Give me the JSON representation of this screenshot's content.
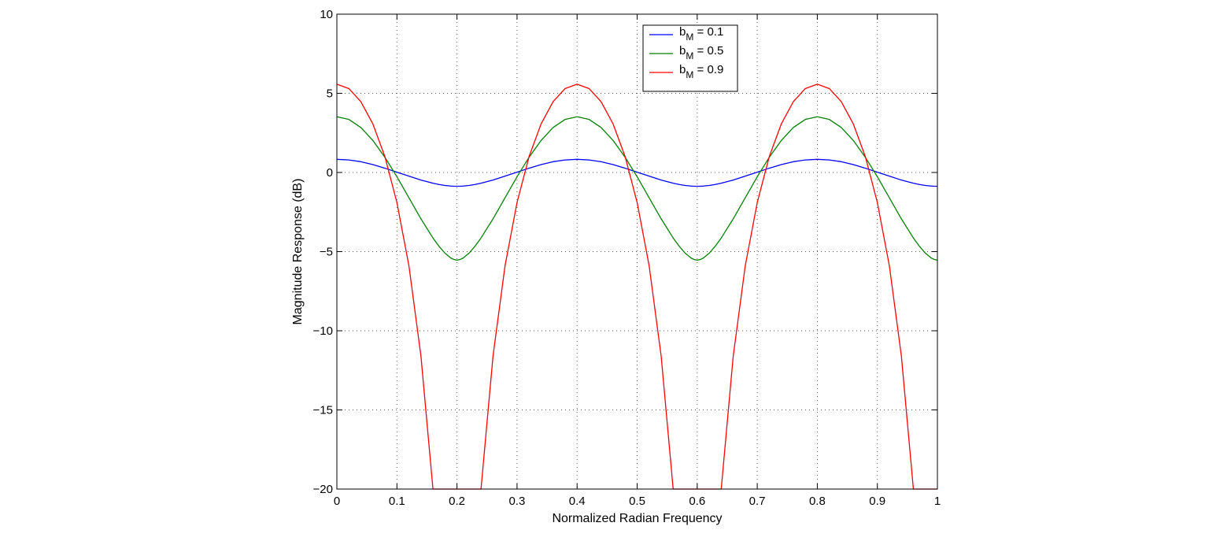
{
  "chart_data": {
    "type": "line",
    "title": "",
    "xlabel": "Normalized Radian Frequency",
    "ylabel": "Magnitude Response (dB)",
    "xlim": [
      0,
      1
    ],
    "ylim": [
      -20,
      10
    ],
    "x_ticks": [
      0,
      0.1,
      0.2,
      0.3,
      0.4,
      0.5,
      0.6,
      0.7,
      0.8,
      0.9,
      1
    ],
    "x_tick_labels": [
      "0",
      "0.1",
      "0.2",
      "0.3",
      "0.4",
      "0.5",
      "0.6",
      "0.7",
      "0.8",
      "0.9",
      "1"
    ],
    "y_ticks": [
      10,
      5,
      0,
      -5,
      -10,
      -15,
      -20
    ],
    "y_tick_labels": [
      "10",
      "5",
      "0",
      "−5",
      "−10",
      "−15",
      "−20"
    ],
    "grid": true,
    "legend_position": "top-center",
    "x": [
      0,
      0.02,
      0.04,
      0.06,
      0.08,
      0.1,
      0.12,
      0.14,
      0.16,
      0.17,
      0.18,
      0.19,
      0.195,
      0.2,
      0.205,
      0.21,
      0.22,
      0.23,
      0.24,
      0.26,
      0.28,
      0.3,
      0.32,
      0.34,
      0.36,
      0.38,
      0.4,
      0.42,
      0.44,
      0.46,
      0.48,
      0.5,
      0.52,
      0.54,
      0.56,
      0.57,
      0.58,
      0.59,
      0.595,
      0.6,
      0.605,
      0.61,
      0.62,
      0.63,
      0.64,
      0.66,
      0.68,
      0.7,
      0.72,
      0.74,
      0.76,
      0.78,
      0.8,
      0.82,
      0.84,
      0.86,
      0.88,
      0.9,
      0.92,
      0.94,
      0.96,
      0.97,
      0.98,
      0.99,
      0.995,
      1
    ],
    "series": [
      {
        "name": "b_M = 0.1",
        "name_base": "b",
        "name_sub": "M",
        "name_rest": " = 0.1",
        "color": "#0000ff",
        "values": [
          0.83,
          0.79,
          0.68,
          0.5,
          0.27,
          0.02,
          -0.23,
          -0.48,
          -0.68,
          -0.76,
          -0.82,
          -0.86,
          -0.87,
          -0.87,
          -0.87,
          -0.86,
          -0.82,
          -0.76,
          -0.68,
          -0.48,
          -0.23,
          0.02,
          0.27,
          0.5,
          0.68,
          0.79,
          0.83,
          0.79,
          0.68,
          0.5,
          0.27,
          0.02,
          -0.23,
          -0.48,
          -0.68,
          -0.76,
          -0.82,
          -0.86,
          -0.87,
          -0.87,
          -0.87,
          -0.86,
          -0.82,
          -0.76,
          -0.68,
          -0.48,
          -0.23,
          0.02,
          0.27,
          0.5,
          0.68,
          0.79,
          0.83,
          0.79,
          0.68,
          0.5,
          0.27,
          0.02,
          -0.23,
          -0.48,
          -0.68,
          -0.76,
          -0.82,
          -0.86,
          -0.87,
          -0.87
        ]
      },
      {
        "name": "b_M = 0.5",
        "name_base": "b",
        "name_sub": "M",
        "name_rest": " = 0.5",
        "color": "#008000",
        "values": [
          3.52,
          3.35,
          2.84,
          2.02,
          0.96,
          -0.27,
          -1.6,
          -2.93,
          -4.14,
          -4.66,
          -5.1,
          -5.41,
          -5.5,
          -5.54,
          -5.5,
          -5.41,
          -5.1,
          -4.66,
          -4.14,
          -2.93,
          -1.6,
          -0.27,
          0.96,
          2.02,
          2.84,
          3.35,
          3.52,
          3.35,
          2.84,
          2.02,
          0.96,
          -0.27,
          -1.6,
          -2.93,
          -4.14,
          -4.66,
          -5.1,
          -5.41,
          -5.5,
          -5.54,
          -5.5,
          -5.41,
          -5.1,
          -4.66,
          -4.14,
          -2.93,
          -1.6,
          -0.27,
          0.96,
          2.02,
          2.84,
          3.35,
          3.52,
          3.35,
          2.84,
          2.02,
          0.96,
          -0.27,
          -1.6,
          -2.93,
          -4.14,
          -4.66,
          -5.1,
          -5.41,
          -5.5,
          -5.54
        ]
      },
      {
        "name": "b_M = 0.9",
        "name_base": "b",
        "name_sub": "M",
        "name_rest": " = 0.9",
        "color": "#ff0000",
        "values": [
          5.58,
          5.3,
          4.47,
          3.06,
          1.0,
          -1.9,
          -5.9,
          -11.6,
          -20.0,
          -20.0,
          -20.0,
          -20.0,
          -20.0,
          -20.0,
          -20.0,
          -20.0,
          -20.0,
          -20.0,
          -20.0,
          -11.6,
          -5.9,
          -1.9,
          1.0,
          3.06,
          4.47,
          5.3,
          5.58,
          5.3,
          4.47,
          3.06,
          1.0,
          -1.9,
          -5.9,
          -11.6,
          -20.0,
          -20.0,
          -20.0,
          -20.0,
          -20.0,
          -20.0,
          -20.0,
          -20.0,
          -20.0,
          -20.0,
          -20.0,
          -11.6,
          -5.9,
          -1.9,
          1.0,
          3.06,
          4.47,
          5.3,
          5.58,
          5.3,
          4.47,
          3.06,
          1.0,
          -1.9,
          -5.9,
          -11.6,
          -20.0,
          -20.0,
          -20.0,
          -20.0,
          -20.0,
          -20.0
        ]
      }
    ]
  }
}
